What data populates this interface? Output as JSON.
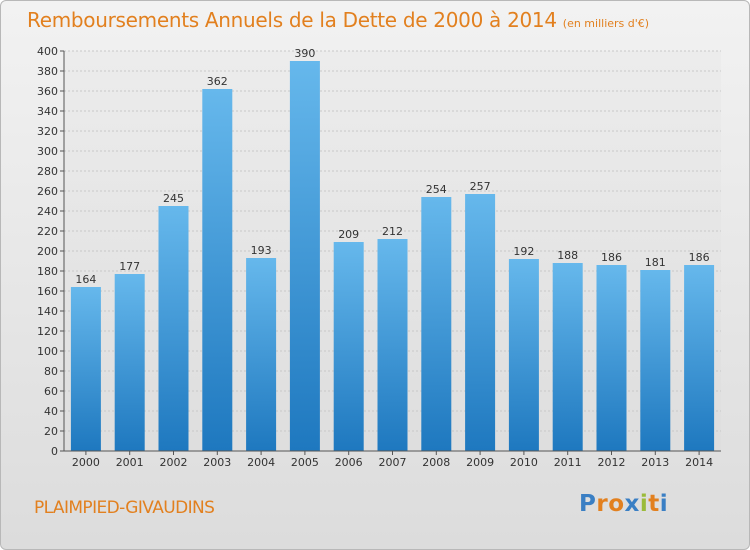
{
  "header": {
    "title": "Remboursements Annuels de la Dette de 2000 à 2014",
    "subtitle": "(en milliers d'€)"
  },
  "footer": {
    "commune": "PLAIMPIED-GIVAUDINS",
    "logo_text": "Proxiti",
    "logo_colors": [
      "#3a7fc4",
      "#e2801f",
      "#e2801f",
      "#3a7fc4",
      "#9bbb3a",
      "#e2801f",
      "#3a7fc4"
    ]
  },
  "colors": {
    "bar_light": "#66b8ec",
    "bar_dark": "#1e78bf",
    "title": "#e2801f",
    "grid": "#c8c8c8"
  },
  "chart_data": {
    "type": "bar",
    "title": "Remboursements Annuels de la Dette de 2000 à 2014",
    "subtitle": "(en milliers d'€)",
    "categories": [
      "2000",
      "2001",
      "2002",
      "2003",
      "2004",
      "2005",
      "2006",
      "2007",
      "2008",
      "2009",
      "2010",
      "2011",
      "2012",
      "2013",
      "2014"
    ],
    "values": [
      164,
      177,
      245,
      362,
      193,
      390,
      209,
      212,
      254,
      257,
      192,
      188,
      186,
      181,
      186
    ],
    "ylim": [
      0,
      400
    ],
    "yticks": [
      0,
      20,
      40,
      60,
      80,
      100,
      120,
      140,
      160,
      180,
      200,
      220,
      240,
      260,
      280,
      300,
      320,
      340,
      360,
      380,
      400
    ],
    "grid": true,
    "legend": "none"
  }
}
